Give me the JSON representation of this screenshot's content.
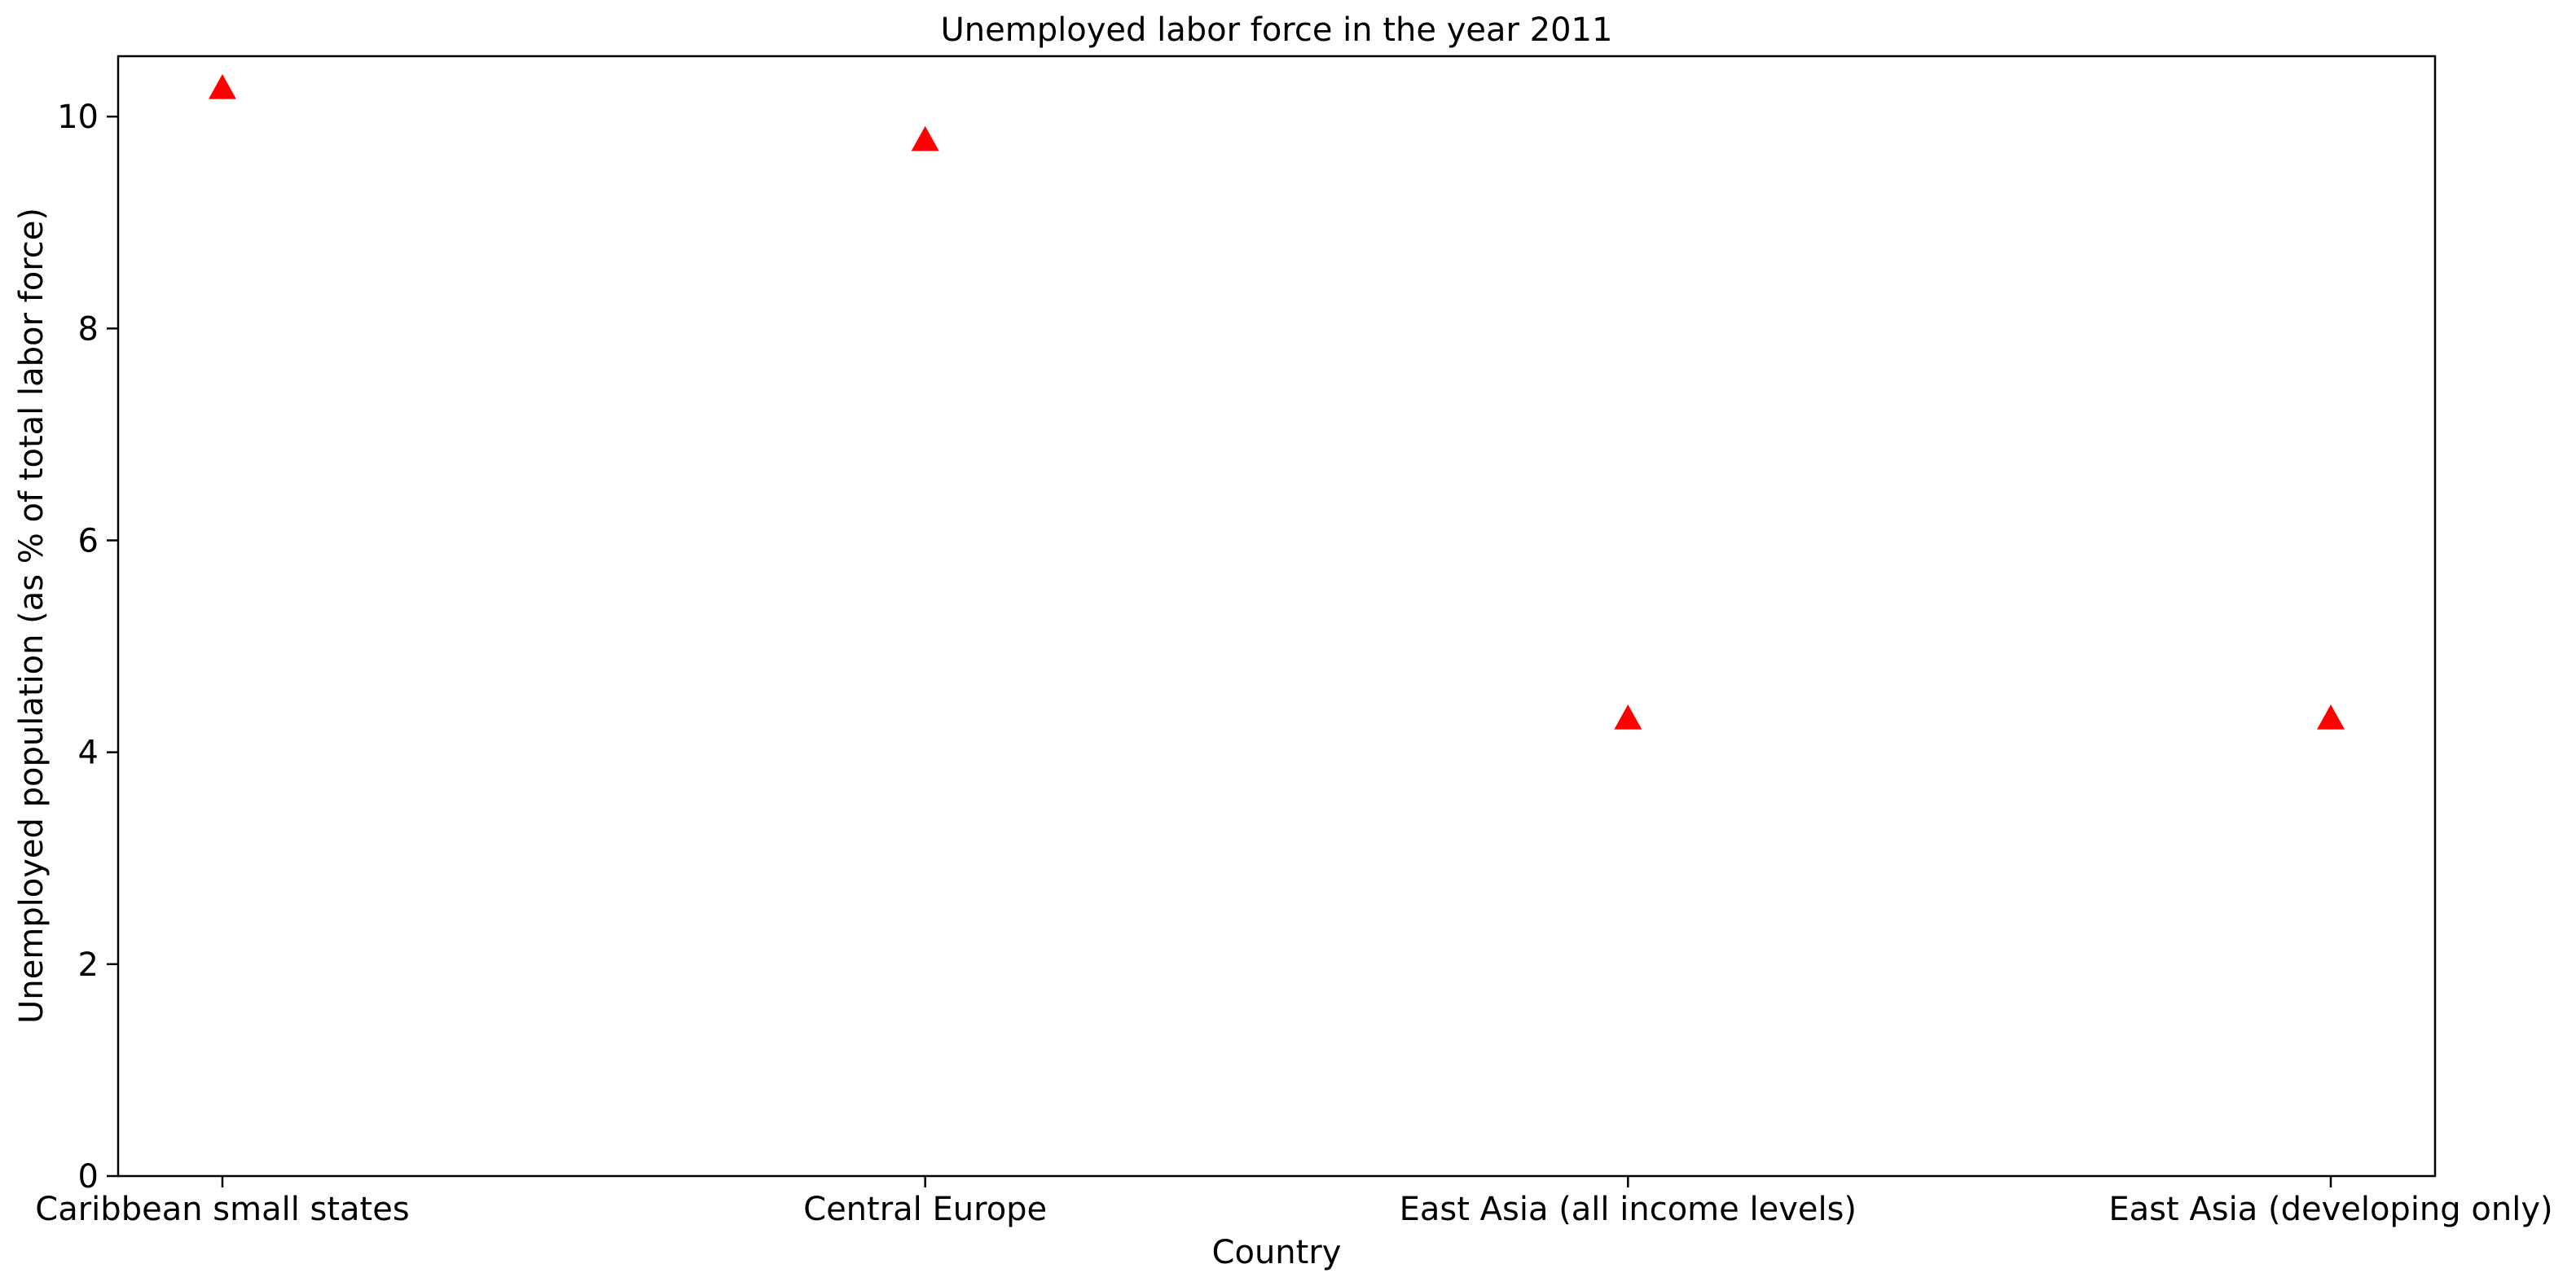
{
  "chart_data": {
    "type": "scatter",
    "title": "Unemployed labor force in the year 2011",
    "xlabel": "Country",
    "ylabel": "Unemployed population (as % of total labor force)",
    "categories": [
      "Caribbean small states",
      "Central Europe",
      "East Asia (all income levels)",
      "East Asia (developing only)"
    ],
    "series": [
      {
        "values": [
          10.27,
          9.78,
          4.32,
          4.32
        ],
        "color": "#ff0000",
        "marker": "triangle-up"
      }
    ],
    "ylim": [
      0,
      10.57
    ],
    "yticks": [
      0,
      2,
      4,
      6,
      8,
      10
    ],
    "grid": false
  }
}
